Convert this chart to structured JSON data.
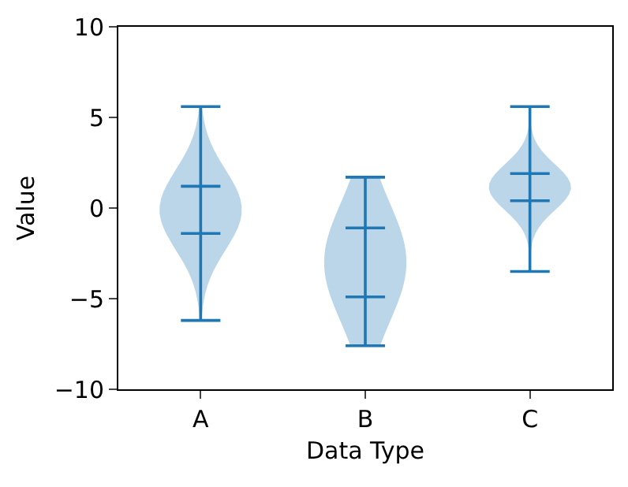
{
  "chart_data": {
    "type": "box",
    "xlabel": "Data Type",
    "ylabel": "Value",
    "categories": [
      "A",
      "B",
      "C"
    ],
    "color": "#1f77b4",
    "ylim": [
      -10,
      10
    ],
    "yticks": [
      -10,
      -5,
      0,
      5,
      10
    ],
    "boxes": [
      {
        "low": -6.2,
        "q1": -1.4,
        "q3": 1.2,
        "high": 5.6
      },
      {
        "low": -7.6,
        "q1": -4.9,
        "q3": -1.1,
        "high": 1.7
      },
      {
        "low": -3.5,
        "q1": 0.4,
        "q3": 1.9,
        "high": 5.6
      }
    ]
  }
}
